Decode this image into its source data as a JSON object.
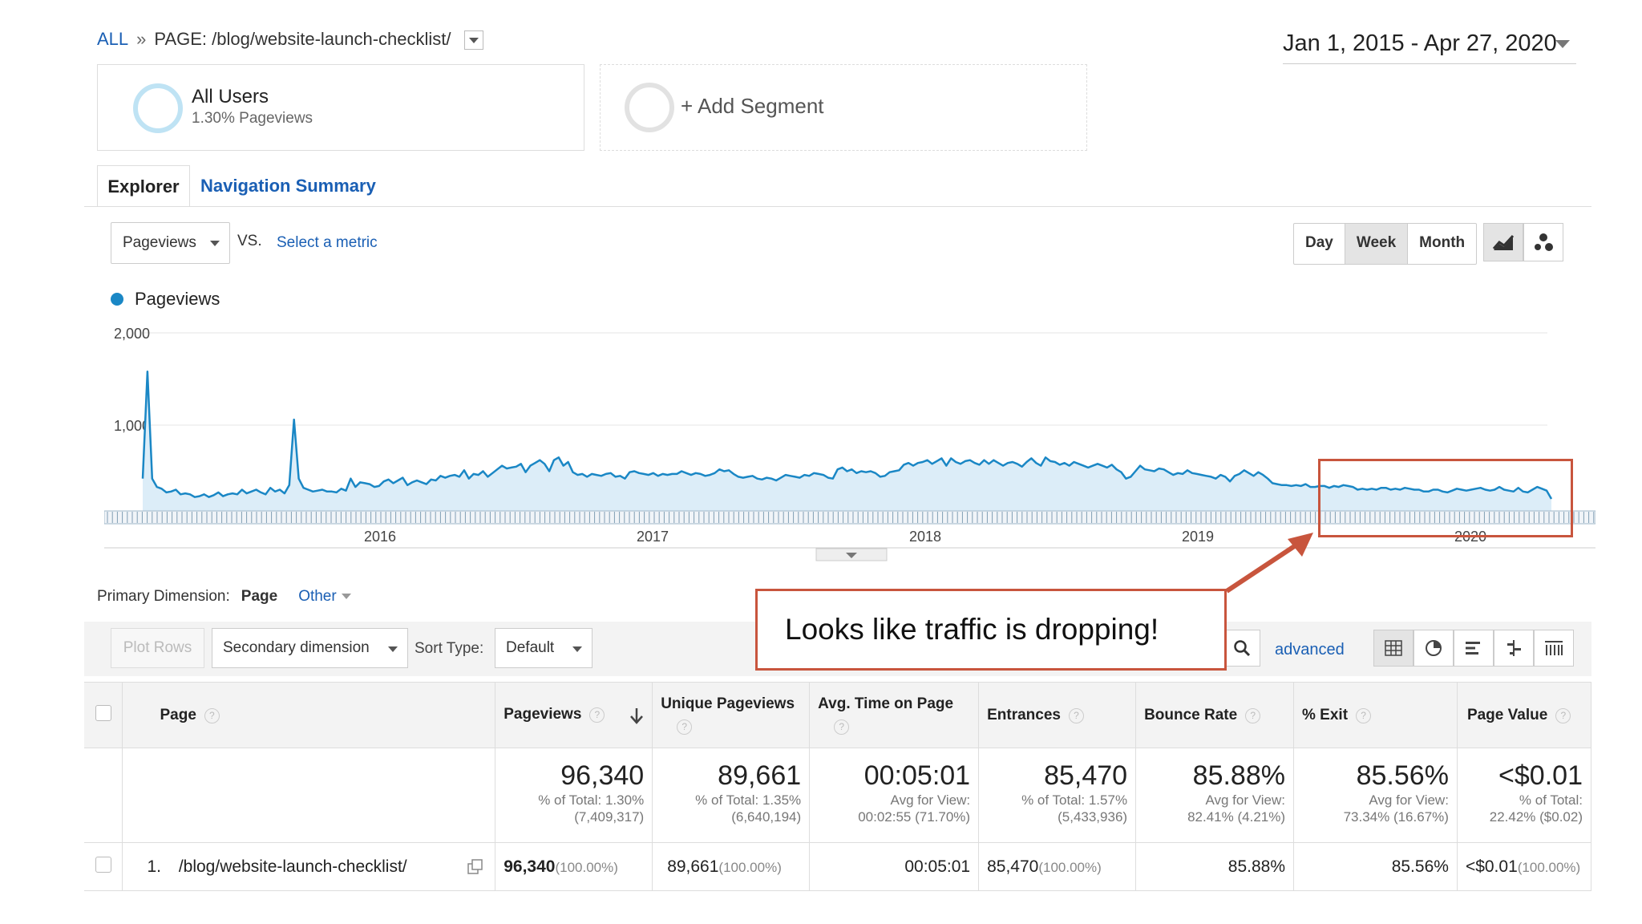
{
  "breadcrumb": {
    "all": "ALL",
    "separator": "»",
    "page_label": "PAGE:",
    "page_path": "/blog/website-launch-checklist/"
  },
  "date_range": "Jan 1, 2015 - Apr 27, 2020",
  "segments": {
    "all_users": {
      "title": "All Users",
      "subtitle": "1.30% Pageviews"
    },
    "add_segment": "+ Add Segment"
  },
  "tabs": [
    {
      "label": "Explorer"
    },
    {
      "label": "Navigation Summary"
    }
  ],
  "metric": {
    "selected": "Pageviews",
    "vs": "VS.",
    "select_metric": "Select a metric"
  },
  "interval_buttons": [
    "Day",
    "Week",
    "Month"
  ],
  "interval_active": "Week",
  "legend": "Pageviews",
  "colors": {
    "series": "#1a87c5",
    "fill": "#dcedf8",
    "annotation": "#c8553d",
    "link": "#1a5fb4"
  },
  "chart_data": {
    "type": "area",
    "series": [
      {
        "name": "Pageviews",
        "values": [
          420,
          1580,
          420,
          330,
          310,
          270,
          280,
          300,
          250,
          260,
          250,
          220,
          230,
          250,
          220,
          240,
          270,
          230,
          250,
          260,
          250,
          300,
          260,
          280,
          300,
          270,
          250,
          320,
          280,
          300,
          260,
          350,
          1060,
          420,
          320,
          300,
          280,
          290,
          300,
          280,
          280,
          270,
          310,
          290,
          420,
          330,
          380,
          370,
          360,
          330,
          340,
          390,
          410,
          370,
          400,
          430,
          350,
          380,
          400,
          380,
          360,
          410,
          400,
          450,
          430,
          450,
          460,
          440,
          510,
          420,
          470,
          460,
          500,
          440,
          480,
          520,
          560,
          530,
          540,
          550,
          580,
          490,
          560,
          590,
          620,
          580,
          500,
          620,
          650,
          560,
          600,
          490,
          460,
          470,
          440,
          470,
          460,
          450,
          470,
          480,
          440,
          450,
          420,
          490,
          500,
          480,
          470,
          460,
          480,
          450,
          470,
          460,
          470,
          470,
          500,
          480,
          460,
          480,
          470,
          450,
          460,
          480,
          520,
          500,
          510,
          470,
          440,
          430,
          440,
          450,
          420,
          410,
          430,
          420,
          400,
          430,
          460,
          450,
          440,
          430,
          460,
          450,
          480,
          470,
          460,
          430,
          420,
          520,
          540,
          500,
          520,
          480,
          500,
          490,
          500,
          480,
          440,
          450,
          490,
          500,
          510,
          570,
          590,
          560,
          590,
          600,
          620,
          580,
          610,
          640,
          560,
          640,
          600,
          580,
          610,
          620,
          590,
          570,
          620,
          580,
          620,
          590,
          560,
          590,
          600,
          580,
          550,
          600,
          640,
          590,
          560,
          650,
          610,
          600,
          570,
          590,
          560,
          600,
          580,
          560,
          540,
          560,
          580,
          560,
          540,
          570,
          520,
          490,
          420,
          440,
          500,
          560,
          520,
          510,
          500,
          530,
          520,
          490,
          460,
          480,
          470,
          510,
          480,
          470,
          460,
          450,
          440,
          420,
          460,
          440,
          390,
          450,
          470,
          510,
          480,
          450,
          490,
          460,
          420,
          370,
          360,
          350,
          350,
          340,
          350,
          340,
          360,
          330,
          330,
          340,
          340,
          320,
          340,
          330,
          350,
          340,
          330,
          300,
          310,
          300,
          310,
          300,
          320,
          320,
          300,
          310,
          300,
          320,
          310,
          300,
          300,
          280,
          280,
          300,
          300,
          280,
          270,
          290,
          310,
          300,
          290,
          300,
          310,
          320,
          300,
          290,
          300,
          330,
          300,
          290,
          280,
          320,
          280,
          270,
          300,
          330,
          310,
          290,
          200
        ]
      }
    ],
    "x_ticks": [
      "2016",
      "2017",
      "2018",
      "2019",
      "2020"
    ],
    "y_ticks": [
      "1,000",
      "2,000"
    ],
    "ylim": [
      0,
      2000
    ],
    "grid": true
  },
  "annotation": "Looks like traffic is dropping!",
  "primary_dimension": {
    "label": "Primary Dimension:",
    "page": "Page",
    "other": "Other"
  },
  "toolbar": {
    "plot_rows": "Plot Rows",
    "secondary_dimension": "Secondary dimension",
    "sort_type_label": "Sort Type:",
    "sort_type_value": "Default",
    "advanced": "advanced"
  },
  "table": {
    "headers": [
      "Page",
      "Pageviews",
      "Unique Pageviews",
      "Avg. Time on Page",
      "Entrances",
      "Bounce Rate",
      "% Exit",
      "Page Value"
    ],
    "totals": [
      {
        "value": "96,340",
        "line1": "% of Total: 1.30%",
        "line2": "(7,409,317)"
      },
      {
        "value": "89,661",
        "line1": "% of Total: 1.35%",
        "line2": "(6,640,194)"
      },
      {
        "value": "00:05:01",
        "line1": "Avg for View:",
        "line2": "00:02:55 (71.70%)"
      },
      {
        "value": "85,470",
        "line1": "% of Total: 1.57%",
        "line2": "(5,433,936)"
      },
      {
        "value": "85.88%",
        "line1": "Avg for View:",
        "line2": "82.41% (4.21%)"
      },
      {
        "value": "85.56%",
        "line1": "Avg for View:",
        "line2": "73.34% (16.67%)"
      },
      {
        "value": "<$0.01",
        "line1": "% of Total:",
        "line2": "22.42% ($0.02)"
      }
    ],
    "rows": [
      {
        "index": "1.",
        "page": "/blog/website-launch-checklist/",
        "pageviews": "96,340",
        "pageviews_pct": "(100.00%)",
        "unique": "89,661",
        "unique_pct": "(100.00%)",
        "avg_time": "00:05:01",
        "entrances": "85,470",
        "entrances_pct": "(100.00%)",
        "bounce": "85.88%",
        "exit": "85.56%",
        "value": "<$0.01",
        "value_pct": "(100.00%)"
      }
    ]
  }
}
